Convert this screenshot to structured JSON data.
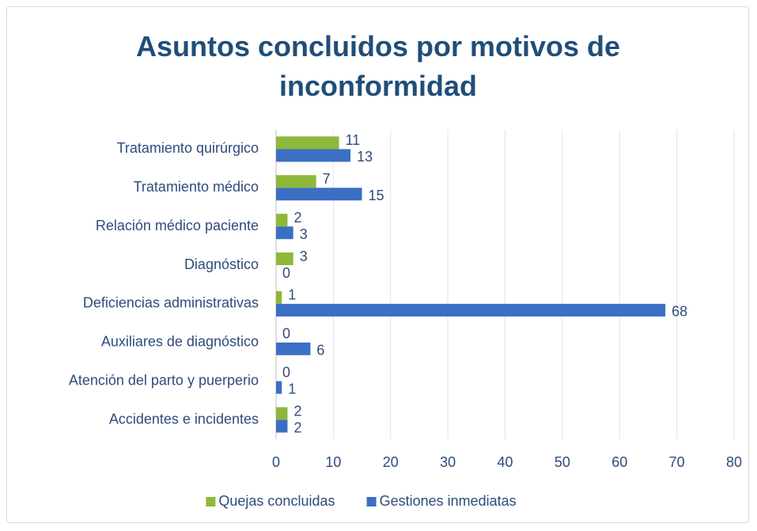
{
  "chart_data": {
    "type": "barh",
    "title": "Asuntos concluidos por motivos de inconformidad",
    "categories": [
      "Tratamiento quirúrgico",
      "Tratamiento médico",
      "Relación médico paciente",
      "Diagnóstico",
      "Deficiencias administrativas",
      "Auxiliares de diagnóstico",
      "Atención del parto y puerperio",
      "Accidentes e incidentes"
    ],
    "series": [
      {
        "name": "Quejas concluidas",
        "color": "#8db83a",
        "values": [
          11,
          7,
          2,
          3,
          1,
          0,
          0,
          2
        ]
      },
      {
        "name": "Gestiones inmediatas",
        "color": "#3a6fc4",
        "values": [
          13,
          15,
          3,
          0,
          68,
          6,
          1,
          2
        ]
      }
    ],
    "xlim": [
      0,
      80
    ],
    "xticks": [
      0,
      10,
      20,
      30,
      40,
      50,
      60,
      70,
      80
    ],
    "grid": true,
    "legend": "bottom"
  }
}
